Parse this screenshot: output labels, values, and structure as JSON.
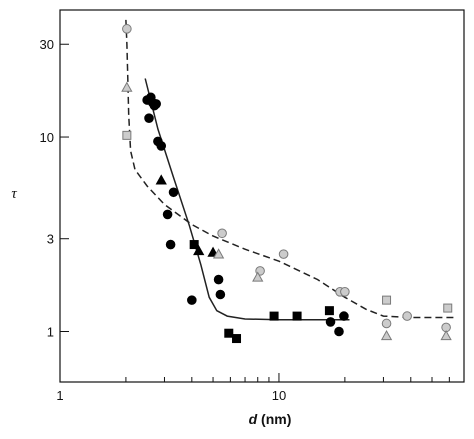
{
  "chart_data": {
    "type": "scatter",
    "title": "",
    "xlabel_symbol": "d",
    "xlabel_unit": " (nm)",
    "ylabel": "τ",
    "xscale": "log",
    "yscale": "log",
    "xlim": [
      1,
      70
    ],
    "ylim": [
      0.55,
      45
    ],
    "grid": false,
    "x_ticks": [
      1,
      10
    ],
    "x_tick_labels": [
      "1",
      "10"
    ],
    "y_ticks": [
      1,
      3,
      10,
      30
    ],
    "y_tick_labels": [
      "1",
      "3",
      "10",
      "30"
    ],
    "series": [
      {
        "marker": "circle",
        "fill": "#000000",
        "stroke": "#000000",
        "points": [
          [
            2.5,
            15.5
          ],
          [
            2.6,
            16
          ],
          [
            2.65,
            15
          ],
          [
            2.7,
            14.5
          ],
          [
            2.55,
            12.5
          ],
          [
            2.75,
            14.8
          ],
          [
            2.8,
            9.5
          ],
          [
            2.9,
            9
          ],
          [
            3.1,
            4
          ],
          [
            3.3,
            5.2
          ],
          [
            3.2,
            2.8
          ],
          [
            4.0,
            1.45
          ],
          [
            5.3,
            1.85
          ],
          [
            5.4,
            1.55
          ],
          [
            17.2,
            1.12
          ],
          [
            18.8,
            1.0
          ],
          [
            19.8,
            1.2
          ]
        ]
      },
      {
        "marker": "square",
        "fill": "#000000",
        "stroke": "#000000",
        "points": [
          [
            4.1,
            2.8
          ],
          [
            5.9,
            0.98
          ],
          [
            6.4,
            0.92
          ],
          [
            9.5,
            1.2
          ],
          [
            12.1,
            1.2
          ],
          [
            17.0,
            1.28
          ]
        ]
      },
      {
        "marker": "triangle",
        "fill": "#000000",
        "stroke": "#000000",
        "points": [
          [
            2.9,
            6.0
          ],
          [
            4.3,
            2.6
          ],
          [
            5.0,
            2.55
          ]
        ]
      },
      {
        "marker": "circle",
        "fill": "#cccccc",
        "stroke": "#7a7a7a",
        "points": [
          [
            2.02,
            36
          ],
          [
            5.5,
            3.2
          ],
          [
            8.2,
            2.05
          ],
          [
            10.5,
            2.5
          ],
          [
            19.0,
            1.6
          ],
          [
            20.0,
            1.6
          ],
          [
            31.0,
            1.1
          ],
          [
            38.5,
            1.2
          ],
          [
            58.0,
            1.05
          ]
        ]
      },
      {
        "marker": "square",
        "fill": "#cccccc",
        "stroke": "#7a7a7a",
        "points": [
          [
            2.02,
            10.2
          ],
          [
            31.0,
            1.45
          ],
          [
            59.0,
            1.32
          ]
        ]
      },
      {
        "marker": "triangle",
        "fill": "#cccccc",
        "stroke": "#7a7a7a",
        "points": [
          [
            2.02,
            18
          ],
          [
            5.3,
            2.5
          ],
          [
            8.0,
            1.9
          ],
          [
            31.0,
            0.95
          ],
          [
            58.0,
            0.95
          ]
        ]
      }
    ],
    "curves": [
      {
        "style": "solid",
        "points": [
          [
            2.45,
            20
          ],
          [
            2.8,
            11
          ],
          [
            3.3,
            6.2
          ],
          [
            3.9,
            3.5
          ],
          [
            4.4,
            2.2
          ],
          [
            4.8,
            1.5
          ],
          [
            5.2,
            1.28
          ],
          [
            5.8,
            1.2
          ],
          [
            7.0,
            1.16
          ],
          [
            10,
            1.15
          ],
          [
            15,
            1.15
          ],
          [
            21,
            1.15
          ]
        ]
      },
      {
        "style": "dashed",
        "points": [
          [
            2.0,
            40
          ],
          [
            2.02,
            30
          ],
          [
            2.04,
            20
          ],
          [
            2.06,
            13
          ],
          [
            2.1,
            8.5
          ],
          [
            2.2,
            6.8
          ],
          [
            2.5,
            5.6
          ],
          [
            3.0,
            4.5
          ],
          [
            4.0,
            3.55
          ],
          [
            5.0,
            3.1
          ],
          [
            7.0,
            2.65
          ],
          [
            10.0,
            2.3
          ],
          [
            15.0,
            1.85
          ],
          [
            20.0,
            1.5
          ],
          [
            25.0,
            1.3
          ],
          [
            30.0,
            1.2
          ],
          [
            40.0,
            1.18
          ],
          [
            65.0,
            1.18
          ]
        ]
      }
    ]
  }
}
